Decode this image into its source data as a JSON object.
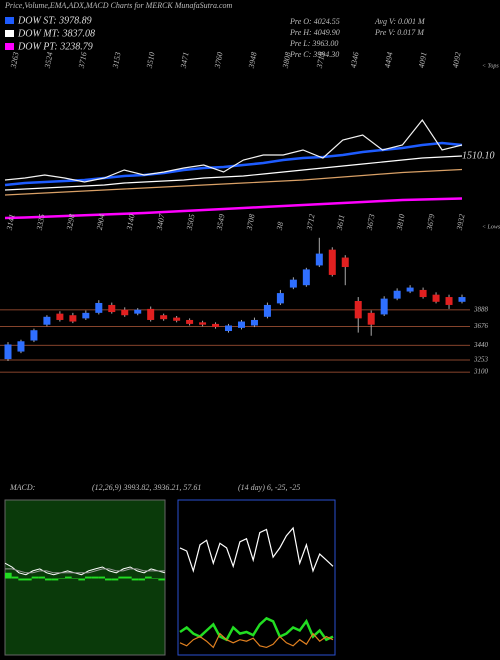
{
  "header": {
    "title": "Price,Volume,EMA,ADX,MACD Charts for MERCK MunafaSutra.com",
    "info": [
      "Pre  O: 4024.55",
      "Pre  H: 4049.90",
      "Pre  L: 3963.00",
      "Pre  C: 3994.30"
    ],
    "volume": [
      "Avg V: 0.001 M",
      "Pre  V: 0.017 M"
    ]
  },
  "chart_data": [
    {
      "type": "line",
      "ylim": [
        2900,
        5100
      ],
      "end_label": "1510.10",
      "tops_caption": "< Tops",
      "tops": [
        "3263",
        "3524",
        "3716",
        "3153",
        "3510",
        "3471",
        "3760",
        "3948",
        "3808",
        "3719",
        "4346",
        "4494",
        "4091",
        "4092"
      ],
      "series": [
        {
          "name": "DOW ST: 3978.89",
          "color": "#1e5cff",
          "values": [
            3433,
            3460,
            3473,
            3487,
            3500,
            3527,
            3553,
            3567,
            3593,
            3633,
            3660,
            3673,
            3700,
            3727,
            3767,
            3793,
            3807,
            3833,
            3873,
            3900,
            3927,
            3967,
            3993,
            3967
          ]
        },
        {
          "name": "DOW MT: 3837.08",
          "color": "#ffffff",
          "values": [
            3367,
            3380,
            3393,
            3407,
            3420,
            3433,
            3460,
            3473,
            3487,
            3500,
            3527,
            3540,
            3553,
            3580,
            3607,
            3633,
            3660,
            3687,
            3713,
            3740,
            3767,
            3793,
            3807,
            3820
          ]
        },
        {
          "name": "DOW PT: 3238.79",
          "color": "#ff00ff",
          "values": [
            2993,
            3000,
            3010,
            3020,
            3030,
            3040,
            3050,
            3060,
            3073,
            3087,
            3100,
            3113,
            3127,
            3140,
            3153,
            3167,
            3180,
            3193,
            3207,
            3220,
            3233,
            3240,
            3247,
            3253
          ]
        },
        {
          "color": "#d9a066",
          "values": [
            3300,
            3313,
            3327,
            3340,
            3353,
            3367,
            3380,
            3393,
            3407,
            3420,
            3433,
            3447,
            3460,
            3473,
            3487,
            3500,
            3520,
            3540,
            3560,
            3580,
            3600,
            3613,
            3627,
            3640
          ]
        },
        {
          "color": "#f2f2f2",
          "values": [
            3500,
            3527,
            3567,
            3527,
            3473,
            3527,
            3633,
            3567,
            3607,
            3660,
            3700,
            3607,
            3767,
            3833,
            3833,
            3900,
            3793,
            4033,
            4100,
            3900,
            3967,
            4300,
            3900,
            3967
          ]
        }
      ]
    },
    {
      "type": "candlestick",
      "ylim": [
        3000,
        5000
      ],
      "yticks": [
        3888,
        3676,
        3440,
        3253,
        3100
      ],
      "grid": true,
      "up_color": "#2f6fff",
      "down_color": "#e02020",
      "lows_caption": "< Lows",
      "lows": [
        "3141",
        "3335",
        "3298",
        "2904",
        "3140",
        "3407",
        "3505",
        "3549",
        "3708",
        "38",
        "3712",
        "3611",
        "3673",
        "3810",
        "3679",
        "3932"
      ],
      "open": [
        3265,
        3360,
        3500,
        3700,
        3840,
        3820,
        3780,
        3850,
        3950,
        3890,
        3840,
        3900,
        3820,
        3790,
        3760,
        3730,
        3710,
        3620,
        3660,
        3690,
        3800,
        3970,
        4170,
        4200,
        4450,
        4650,
        4550,
        4000,
        3850,
        3830,
        4030,
        4120,
        4140,
        4080,
        4050,
        3990
      ],
      "high": [
        3480,
        3510,
        3650,
        3820,
        3870,
        3850,
        3880,
        4010,
        3980,
        3920,
        3910,
        3930,
        3840,
        3810,
        3780,
        3750,
        3730,
        3710,
        3760,
        3790,
        3980,
        4140,
        4300,
        4420,
        4800,
        4680,
        4580,
        4050,
        3880,
        4060,
        4160,
        4200,
        4170,
        4110,
        4080,
        4080
      ],
      "low": [
        3240,
        3340,
        3480,
        3680,
        3740,
        3720,
        3760,
        3830,
        3840,
        3800,
        3820,
        3740,
        3750,
        3730,
        3690,
        3680,
        3650,
        3600,
        3640,
        3670,
        3780,
        3950,
        4150,
        4180,
        4430,
        4310,
        4200,
        3600,
        3560,
        3810,
        4010,
        4100,
        4030,
        3970,
        3900,
        3970
      ],
      "close": [
        3450,
        3490,
        3630,
        3800,
        3760,
        3740,
        3850,
        3975,
        3860,
        3820,
        3890,
        3760,
        3770,
        3750,
        3710,
        3700,
        3670,
        3690,
        3740,
        3760,
        3950,
        4100,
        4270,
        4400,
        4600,
        4330,
        4430,
        3780,
        3700,
        4030,
        4130,
        4170,
        4050,
        3990,
        3950,
        4050
      ]
    },
    {
      "type": "macd",
      "label": "MACD:",
      "params": "(12,26,9) 3993.82, 3936.21, 57.61",
      "ylim": [
        -40,
        40
      ],
      "series": [
        {
          "color": "#ffffff",
          "values": [
            8,
            6,
            3,
            2,
            4,
            5,
            3,
            2,
            3,
            4,
            3,
            2,
            4,
            5,
            6,
            4,
            3,
            5,
            6,
            4,
            3,
            5,
            4,
            3
          ]
        },
        {
          "color": "#9a9a9a",
          "values": [
            5,
            5,
            4,
            3,
            3,
            4,
            4,
            3,
            3,
            3,
            3,
            3,
            3,
            4,
            5,
            5,
            4,
            4,
            5,
            5,
            4,
            4,
            4,
            4
          ]
        }
      ],
      "histogram": {
        "color": "#22dd22",
        "values": [
          3,
          1,
          -1,
          -1,
          1,
          1,
          -1,
          -1,
          0,
          1,
          0,
          -1,
          1,
          1,
          1,
          -1,
          -1,
          1,
          1,
          -1,
          -1,
          1,
          0,
          -1
        ]
      }
    },
    {
      "type": "adx",
      "params": "(14 day) 6, -25, -25",
      "ylim": [
        0,
        100
      ],
      "series": [
        {
          "color": "#ffffff",
          "values": [
            70,
            68,
            55,
            72,
            75,
            60,
            73,
            70,
            58,
            74,
            76,
            62,
            80,
            82,
            64,
            70,
            78,
            83,
            60,
            72,
            55,
            66,
            62,
            58
          ]
        },
        {
          "color": "#22dd22",
          "values": [
            15,
            18,
            14,
            12,
            16,
            20,
            12,
            10,
            18,
            14,
            15,
            13,
            20,
            24,
            22,
            12,
            14,
            18,
            16,
            22,
            12,
            16,
            10,
            12
          ]
        },
        {
          "color": "#e08020",
          "values": [
            8,
            6,
            10,
            12,
            9,
            5,
            14,
            10,
            8,
            10,
            9,
            11,
            6,
            5,
            7,
            12,
            8,
            6,
            10,
            7,
            14,
            9,
            12,
            10
          ]
        }
      ]
    }
  ]
}
